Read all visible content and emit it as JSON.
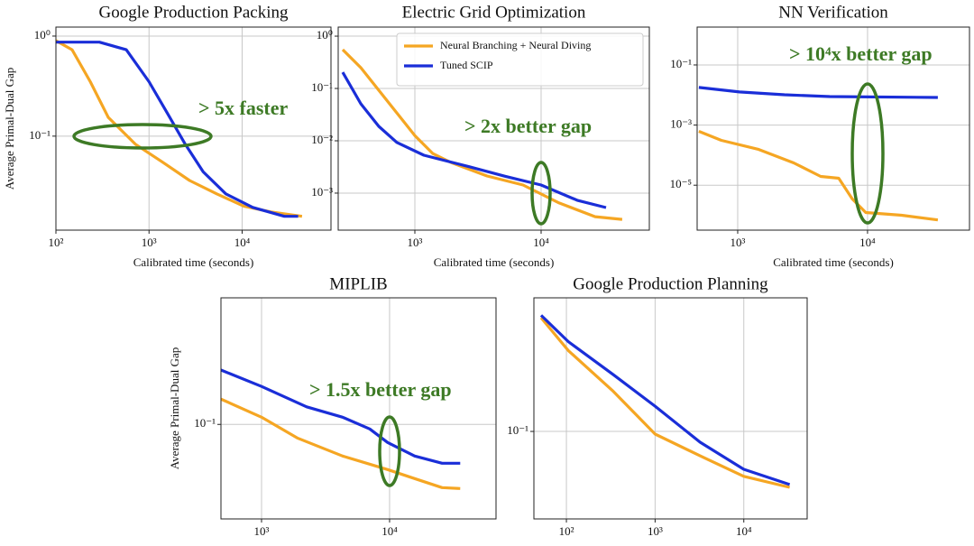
{
  "chart_data": [
    {
      "type": "line",
      "title": "Google Production Packing",
      "x_label": "Calibrated time (seconds)",
      "y_label": "Average Primal-Dual Gap",
      "log_x": true,
      "log_y": true,
      "grid": true,
      "annotation": "> 5x faster",
      "xlim": [
        100,
        90000
      ],
      "ylim": [
        0.0115,
        1.23
      ],
      "xticks": [
        {
          "value": 100,
          "label": "10²"
        },
        {
          "value": 1000,
          "label": "10³"
        },
        {
          "value": 10000,
          "label": "10⁴"
        }
      ],
      "yticks": [
        {
          "value": 1,
          "label": "10⁰"
        },
        {
          "value": 0.1,
          "label": "10⁻¹"
        }
      ],
      "series": [
        {
          "color": "#f5a623",
          "x": [
            100,
            149,
            234,
            365,
            714,
            1394,
            2727,
            5330,
            10420,
            20360,
            44000
          ],
          "values": [
            0.9,
            0.73,
            0.35,
            0.154,
            0.083,
            0.055,
            0.036,
            0.0265,
            0.02,
            0.0175,
            0.0158
          ]
        },
        {
          "color": "#1a2ed8",
          "x": [
            100,
            293,
            570,
            1000,
            1570,
            2450,
            3820,
            6680,
            13000,
            28400,
            40000
          ],
          "values": [
            0.87,
            0.87,
            0.73,
            0.35,
            0.17,
            0.083,
            0.044,
            0.0265,
            0.0194,
            0.0158,
            0.0158
          ]
        }
      ]
    },
    {
      "type": "line",
      "title": "Electric Grid Optimization",
      "x_label": "Calibrated time (seconds)",
      "log_x": true,
      "log_y": true,
      "grid": true,
      "annotation": "> 2x better gap",
      "legend": "upper right",
      "xlim": [
        247,
        72000
      ],
      "ylim": [
        0.000196,
        1.49
      ],
      "xticks": [
        {
          "value": 1000,
          "label": "10³"
        },
        {
          "value": 10000,
          "label": "10⁴"
        }
      ],
      "yticks": [
        {
          "value": 1,
          "label": "10⁰"
        },
        {
          "value": 0.1,
          "label": "10⁻¹"
        },
        {
          "value": 0.01,
          "label": "10⁻²"
        },
        {
          "value": 0.001,
          "label": "10⁻³"
        }
      ],
      "series": [
        {
          "name": "Neural Branching + Neural Diving",
          "color": "#f5a623",
          "x": [
            268,
            373,
            518,
            720,
            1000,
            1389,
            1930,
            3728,
            7197,
            13900,
            26800,
            43900
          ],
          "values": [
            0.551,
            0.249,
            0.0923,
            0.0341,
            0.0126,
            0.00569,
            0.00386,
            0.00212,
            0.00143,
            0.000648,
            0.000354,
            0.000314
          ]
        },
        {
          "name": "Tuned SCIP",
          "color": "#1a2ed8",
          "x": [
            268,
            373,
            518,
            720,
            1179,
            2685,
            5180,
            10000,
            19300,
            32700
          ],
          "values": [
            0.204,
            0.051,
            0.0189,
            0.0093,
            0.0053,
            0.0032,
            0.0021,
            0.00143,
            0.00073,
            0.00053
          ]
        }
      ]
    },
    {
      "type": "line",
      "title": "NN Verification",
      "x_label": "Calibrated time (seconds)",
      "log_x": true,
      "log_y": true,
      "grid": true,
      "annotation": "> 10⁴x better gap",
      "xlim": [
        487,
        61000
      ],
      "ylim": [
        3.2e-07,
        1.82
      ],
      "xticks": [
        {
          "value": 1000,
          "label": "10³"
        },
        {
          "value": 10000,
          "label": "10⁴"
        }
      ],
      "yticks": [
        {
          "value": 0.1,
          "label": "10⁻¹"
        },
        {
          "value": 0.001,
          "label": "10⁻³"
        },
        {
          "value": 1e-05,
          "label": "10⁻⁵"
        }
      ],
      "series": [
        {
          "color": "#f5a623",
          "x": [
            502,
            748,
            1452,
            2700,
            4360,
            6000,
            7630,
            9690,
            18300,
            34800
          ],
          "values": [
            0.00062,
            0.00031,
            0.000155,
            5.5e-05,
            1.95e-05,
            1.7e-05,
            3.5e-06,
            1.23e-06,
            1e-06,
            7e-07
          ]
        },
        {
          "color": "#1a2ed8",
          "x": [
            502,
            1032,
            2295,
            5110,
            34800
          ],
          "values": [
            0.0178,
            0.0126,
            0.0102,
            0.0089,
            0.0083
          ]
        }
      ]
    },
    {
      "type": "line",
      "title": "MIPLIB",
      "x_label": "Calibrated time (seconds)",
      "y_label": "Average Primal-Dual Gap",
      "log_x": true,
      "log_y": true,
      "grid": true,
      "annotation": "> 1.5x better gap",
      "xlim": [
        482,
        67800
      ],
      "ylim": [
        0.041,
        0.33
      ],
      "xticks": [
        {
          "value": 1000,
          "label": "10³"
        },
        {
          "value": 10000,
          "label": "10⁴"
        }
      ],
      "yticks": [
        {
          "value": 0.1,
          "label": "10⁻¹"
        }
      ],
      "series": [
        {
          "color": "#f5a623",
          "x": [
            482,
            1000,
            1900,
            4300,
            9650,
            15700,
            25700,
            35600
          ],
          "values": [
            0.127,
            0.107,
            0.088,
            0.0742,
            0.0653,
            0.06,
            0.0551,
            0.0546
          ]
        },
        {
          "color": "#1a2ed8",
          "x": [
            482,
            1000,
            2249,
            4300,
            7000,
            9650,
            15700,
            25700,
            35600
          ],
          "values": [
            0.167,
            0.143,
            0.118,
            0.107,
            0.0958,
            0.0843,
            0.0742,
            0.0693,
            0.0693
          ]
        }
      ]
    },
    {
      "type": "line",
      "title": "Google Production Planning",
      "x_label": "Calibrated time (seconds)",
      "log_x": true,
      "log_y": true,
      "grid": true,
      "xlim": [
        43,
        51800
      ],
      "ylim": [
        0.0437,
        0.354
      ],
      "xticks": [
        {
          "value": 100,
          "label": "10²"
        },
        {
          "value": 1000,
          "label": "10³"
        },
        {
          "value": 10000,
          "label": "10⁴"
        }
      ],
      "yticks": [
        {
          "value": 0.1,
          "label": "10⁻¹"
        }
      ],
      "series": [
        {
          "color": "#f5a623",
          "x": [
            51.8,
            105,
            338,
            1000,
            3220,
            10000,
            32900
          ],
          "values": [
            0.293,
            0.215,
            0.146,
            0.0975,
            0.0794,
            0.0654,
            0.0589
          ]
        },
        {
          "color": "#1a2ed8",
          "x": [
            51.8,
            105,
            338,
            1000,
            3220,
            10000,
            32900
          ],
          "values": [
            0.3,
            0.234,
            0.171,
            0.127,
            0.0903,
            0.0699,
            0.0605
          ]
        }
      ]
    }
  ]
}
